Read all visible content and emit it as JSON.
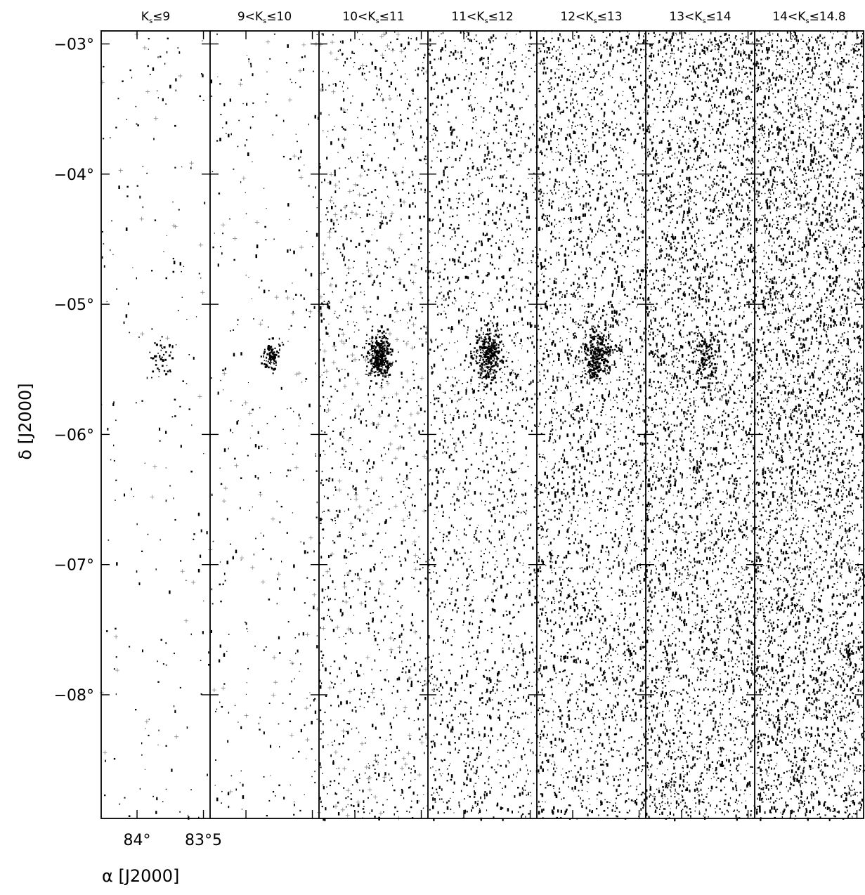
{
  "chart_data": {
    "type": "scatter",
    "panels": [
      {
        "title": {
          "pre": "K",
          "sub": "s",
          "post": "≤9"
        },
        "n_stars": 230,
        "cluster_stars": 45,
        "cluster_sigma_deg": 0.055
      },
      {
        "title": {
          "pre": "9<K",
          "sub": "s",
          "post": "≤10"
        },
        "n_stars": 400,
        "cluster_stars": 90,
        "cluster_sigma_deg": 0.05
      },
      {
        "title": {
          "pre": "10<K",
          "sub": "s",
          "post": "≤11"
        },
        "n_stars": 1500,
        "cluster_stars": 340,
        "cluster_sigma_deg": 0.07
      },
      {
        "title": {
          "pre": "11<K",
          "sub": "s",
          "post": "≤12"
        },
        "n_stars": 2200,
        "cluster_stars": 320,
        "cluster_sigma_deg": 0.08
      },
      {
        "title": {
          "pre": "12<K",
          "sub": "s",
          "post": "≤13"
        },
        "n_stars": 3200,
        "cluster_stars": 320,
        "cluster_sigma_deg": 0.09
      },
      {
        "title": {
          "pre": "13<K",
          "sub": "s",
          "post": "≤14"
        },
        "n_stars": 4200,
        "cluster_stars": 120,
        "cluster_sigma_deg": 0.08
      },
      {
        "title": {
          "pre": "14<K",
          "sub": "s",
          "post": "≤14.8"
        },
        "n_stars": 4800,
        "cluster_stars": 0,
        "cluster_sigma_deg": 0.08
      }
    ],
    "cluster_center": {
      "ra": 83.82,
      "dec": -5.39
    },
    "ra_range": [
      84.27,
      83.45
    ],
    "dec_range": [
      -2.9,
      -8.95
    ],
    "y_ticks": [
      {
        "value": -3,
        "label": "−03°"
      },
      {
        "value": -4,
        "label": "−04°"
      },
      {
        "value": -5,
        "label": "−05°"
      },
      {
        "value": -6,
        "label": "−06°"
      },
      {
        "value": -7,
        "label": "−07°"
      },
      {
        "value": -8,
        "label": "−08°"
      }
    ],
    "x_ticks": [
      {
        "value": 84.0,
        "label": "84°"
      },
      {
        "value": 83.5,
        "label": "83°5"
      }
    ],
    "xlabel": "α  [J2000]",
    "ylabel": "δ  [J2000]"
  }
}
